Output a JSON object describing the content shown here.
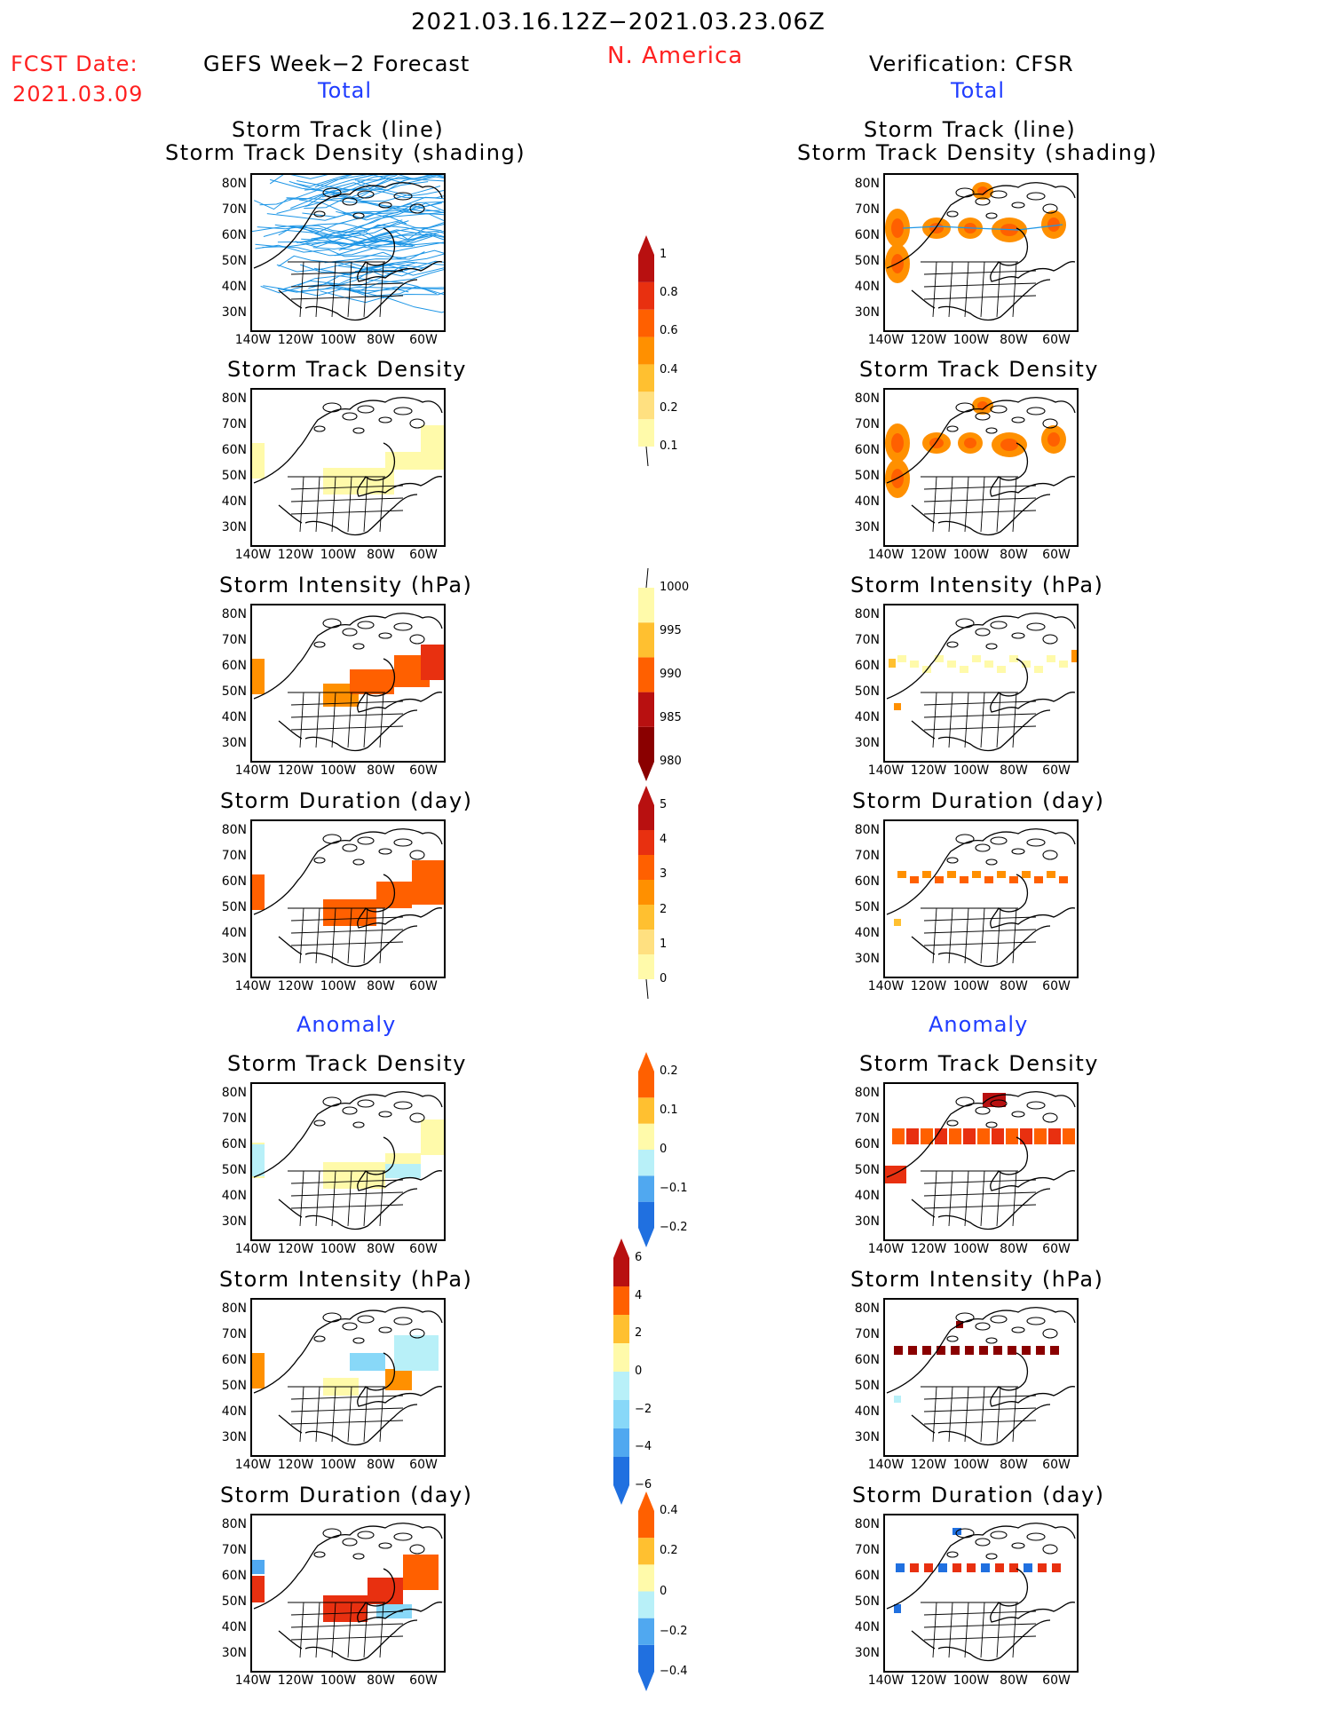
{
  "header": {
    "period": "2021.03.16.12Z−2021.03.23.06Z",
    "region": "N. America",
    "fcst_label": "FCST Date:",
    "fcst_date": "2021.03.09",
    "left_title": "GEFS Week−2 Forecast",
    "right_title": "Verification: CFSR",
    "total_label": "Total",
    "anomaly_label": "Anomaly"
  },
  "panel_titles": {
    "track_line": "Storm Track (line)",
    "track_shading": "Storm Track Density (shading)",
    "density": "Storm Track Density",
    "intensity": "Storm Intensity (hPa)",
    "duration": "Storm Duration (day)"
  },
  "axes": {
    "lat_ticks": [
      "80N",
      "70N",
      "60N",
      "50N",
      "40N",
      "30N"
    ],
    "lon_ticks": [
      "140W",
      "120W",
      "100W",
      "80W",
      "60W"
    ]
  },
  "colorbars": {
    "density_total": [
      "1",
      "0.8",
      "0.6",
      "0.4",
      "0.2",
      "0.1"
    ],
    "intensity_total": [
      "1000",
      "995",
      "990",
      "985",
      "980"
    ],
    "duration_total": [
      "5",
      "4",
      "3",
      "2",
      "1",
      "0"
    ],
    "density_anom": [
      "0.2",
      "0.1",
      "0",
      "−0.1",
      "−0.2"
    ],
    "intensity_anom": [
      "6",
      "4",
      "2",
      "0",
      "−2",
      "−4",
      "−6"
    ],
    "duration_anom": [
      "0.4",
      "0.2",
      "0",
      "−0.2",
      "−0.4"
    ]
  },
  "colors": {
    "warm": [
      "#fffaaa",
      "#ffe080",
      "#ffc030",
      "#ff9000",
      "#ff6000",
      "#e83010",
      "#b81010",
      "#8a0000"
    ],
    "cool": [
      "#b8f0f8",
      "#88d8f8",
      "#50a8f0",
      "#2070e0"
    ],
    "track": "#1e96e6"
  }
}
